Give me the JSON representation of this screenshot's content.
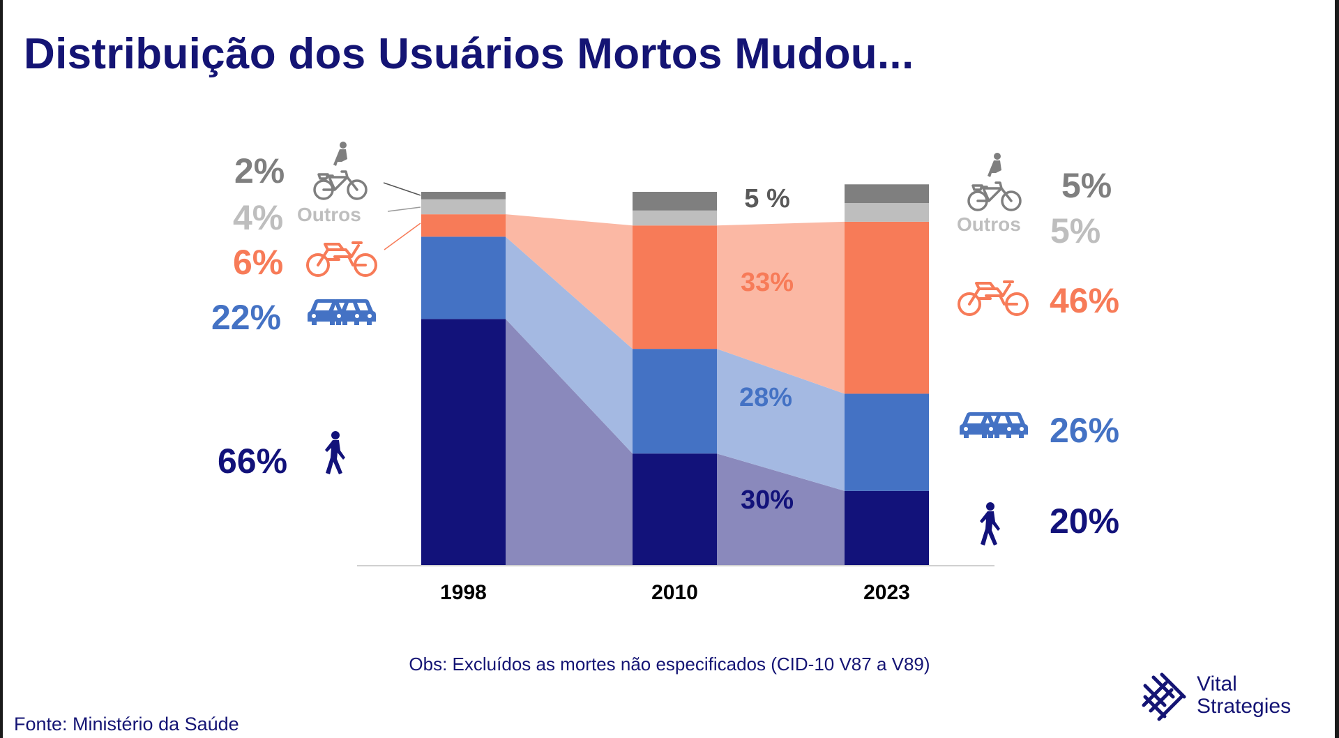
{
  "title": "Distribuição dos Usuários Mortos Mudou...",
  "note": "Obs: Excluídos as mortes não especificados (CID-10 V87 a V89)",
  "source": "Fonte: Ministério da Saúde",
  "logo": {
    "line1": "Vital",
    "line2": "Strategies"
  },
  "colors": {
    "pedestrian": "#12127A",
    "car": "#4472C4",
    "moto": "#F77B58",
    "outros": "#BEBEBE",
    "bicycle": "#7F7F7F",
    "pedestrian_band": "#8A89BC",
    "car_band": "#A4B9E2",
    "moto_band": "#FBB8A4",
    "axis": "#D0D0D0"
  },
  "chart_data": {
    "type": "bar",
    "stacked": true,
    "categories": [
      "1998",
      "2010",
      "2023"
    ],
    "series": [
      {
        "name": "Pedestres",
        "icon": "pedestrian-icon",
        "values": [
          66,
          30,
          20
        ]
      },
      {
        "name": "Carros",
        "icon": "cars-icon",
        "values": [
          22,
          28,
          26
        ]
      },
      {
        "name": "Motos",
        "icon": "motorcycle-icon",
        "values": [
          6,
          33,
          46
        ]
      },
      {
        "name": "Outros",
        "icon": "",
        "values": [
          4,
          4,
          5
        ]
      },
      {
        "name": "Bicicletas",
        "icon": "bicycle-icon",
        "values": [
          2,
          5,
          5
        ]
      }
    ],
    "ylim": [
      0,
      100
    ],
    "labels": {
      "left": {
        "bicycle": "2%",
        "outros": "4%",
        "outros_text": "Outros",
        "moto": "6%",
        "car": "22%",
        "pedestrian": "66%"
      },
      "middle": {
        "top": "5 %",
        "moto": "33%",
        "car": "28%",
        "pedestrian": "30%"
      },
      "right": {
        "bicycle": "5%",
        "outros_text": "Outros",
        "outros": "5%",
        "moto": "46%",
        "car": "26%",
        "pedestrian": "20%"
      }
    }
  }
}
